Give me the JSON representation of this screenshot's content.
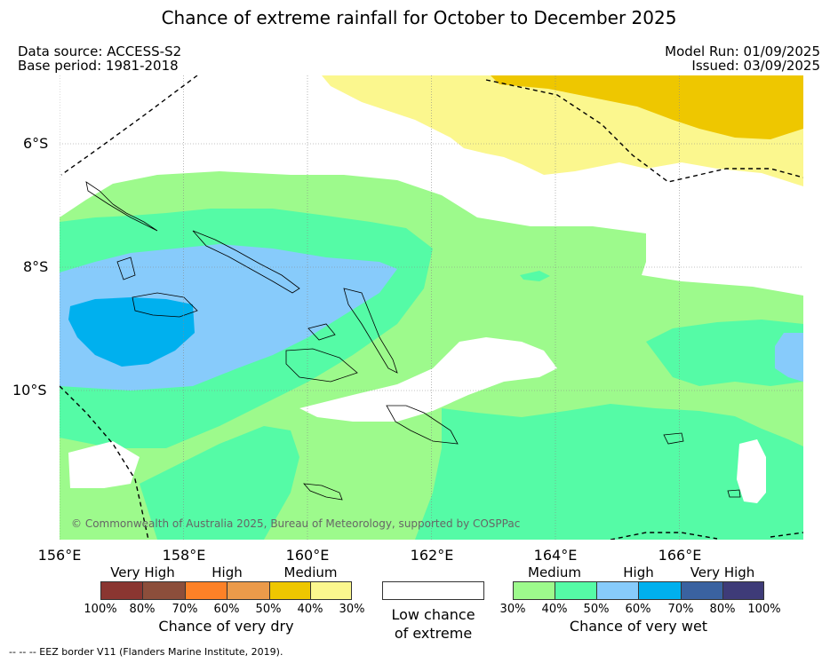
{
  "title": "Chance of extreme rainfall for October to December 2025",
  "info": {
    "data_source": "Data source: ACCESS-S2",
    "base_period": "Base period: 1981-2018",
    "model_run": "Model Run: 01/09/2025",
    "issued": "Issued: 03/09/2025"
  },
  "map": {
    "lat_labels": [
      "6°S",
      "8°S",
      "10°S"
    ],
    "lon_labels": [
      "156°E",
      "158°E",
      "160°E",
      "162°E",
      "164°E",
      "166°E"
    ],
    "copyright": "© Commonwealth of Australia 2025, Bureau of Meteorology, supported by COSPPac",
    "colors": {
      "low_chance": "#ffffff",
      "wet_30": "#9dfa8c",
      "wet_40": "#55fba6",
      "wet_50": "#87cbfb",
      "wet_60": "#00b0ee",
      "dry_40": "#fbf78e",
      "dry_50": "#eec700"
    }
  },
  "legend": {
    "dry": {
      "categories": [
        "Very High",
        "High",
        "Medium"
      ],
      "ticks": [
        "100%",
        "80%",
        "70%",
        "60%",
        "50%",
        "40%",
        "30%"
      ],
      "colors": [
        "#8a3631",
        "#8c4e3b",
        "#fd8127",
        "#eb9a4a",
        "#eec700",
        "#fbf78e"
      ],
      "caption": "Chance of very dry"
    },
    "low": {
      "caption_line1": "Low chance",
      "caption_line2": "of extreme",
      "color": "#ffffff"
    },
    "wet": {
      "categories": [
        "Medium",
        "High",
        "Very High"
      ],
      "ticks": [
        "30%",
        "40%",
        "50%",
        "60%",
        "70%",
        "80%",
        "100%"
      ],
      "colors": [
        "#9dfa8c",
        "#55fba6",
        "#87cbfb",
        "#00b0ee",
        "#3a62a0",
        "#3e3b78"
      ],
      "caption": "Chance of very wet"
    }
  },
  "footer": "--  --  -- EEZ border V11 (Flanders Marine Institute, 2019)."
}
